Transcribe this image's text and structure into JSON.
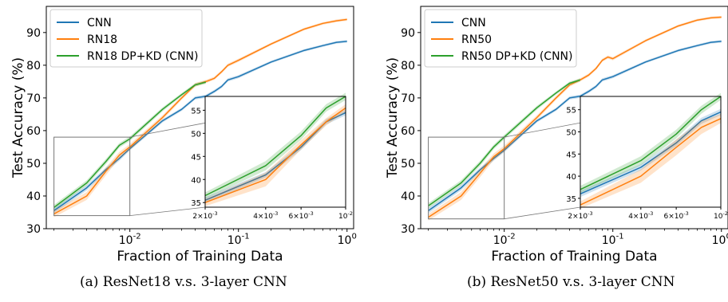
{
  "chart_data": [
    {
      "type": "line",
      "xscale": "log",
      "xlabel": "Fraction of Training Data",
      "ylabel": "Test Accuracy (%)",
      "xlim": [
        0.0017,
        1.15
      ],
      "ylim": [
        30,
        98
      ],
      "xticks": [
        "10^-2",
        "10^-1",
        "10^0"
      ],
      "yticks": [
        30,
        40,
        50,
        60,
        70,
        80,
        90
      ],
      "legend_position": "top-left",
      "grid": false,
      "series": [
        {
          "name": "CNN",
          "color": "#1f77b4",
          "x": [
            0.002,
            0.004,
            0.006,
            0.008,
            0.01,
            0.02,
            0.03,
            0.04,
            0.05,
            0.06,
            0.07,
            0.08,
            0.1,
            0.2,
            0.4,
            0.6,
            0.8,
            1.0
          ],
          "y": [
            35.5,
            42.5,
            48.0,
            51.5,
            54.5,
            63.0,
            66.5,
            70.0,
            70.5,
            72.0,
            73.5,
            75.5,
            76.5,
            81.0,
            84.5,
            86.0,
            87.0,
            87.3
          ],
          "band": [
            0.8,
            0.8,
            0.7,
            0.7,
            0.6,
            0.5,
            0.5,
            0.5,
            0.5,
            0.5,
            0.5,
            0.5,
            0.5,
            0.4,
            0.4,
            0.4,
            0.4,
            0.4
          ]
        },
        {
          "name": "RN18",
          "color": "#ff7f0e",
          "x": [
            0.002,
            0.004,
            0.006,
            0.008,
            0.01,
            0.02,
            0.03,
            0.04,
            0.05,
            0.06,
            0.07,
            0.08,
            0.1,
            0.2,
            0.4,
            0.6,
            0.8,
            1.0
          ],
          "y": [
            34.5,
            40.0,
            47.5,
            52.5,
            55.0,
            64.0,
            70.0,
            74.0,
            75.0,
            76.0,
            78.0,
            80.0,
            81.5,
            86.5,
            91.0,
            92.8,
            93.6,
            94.0
          ],
          "band": [
            1.0,
            1.2,
            1.2,
            1.0,
            0.9,
            0.7,
            0.6,
            0.6,
            0.5,
            0.5,
            0.5,
            0.5,
            0.5,
            0.4,
            0.4,
            0.4,
            0.4,
            0.4
          ]
        },
        {
          "name": "RN18 DP+KD (CNN)",
          "color": "#2ca02c",
          "x": [
            0.002,
            0.004,
            0.006,
            0.008,
            0.01,
            0.02,
            0.03,
            0.04,
            0.05
          ],
          "y": [
            36.5,
            44.0,
            50.5,
            55.5,
            57.5,
            66.5,
            71.0,
            74.0,
            74.8
          ],
          "band": [
            0.8,
            0.8,
            0.8,
            0.7,
            0.7,
            0.6,
            0.5,
            0.5,
            0.5
          ]
        }
      ],
      "inset": {
        "xlim": [
          0.002,
          0.01
        ],
        "ylim": [
          34,
          58
        ],
        "xticks": [
          "2×10^-3",
          "4×10^-3",
          "6×10^-3",
          "10^-2"
        ],
        "yticks": [
          35,
          40,
          45,
          50,
          55
        ],
        "series": [
          {
            "name": "CNN",
            "color": "#1f77b4",
            "x": [
              0.002,
              0.004,
              0.006,
              0.008,
              0.01
            ],
            "y": [
              35.5,
              41.0,
              47.0,
              52.5,
              54.5
            ],
            "band": [
              0.6,
              0.6,
              0.6,
              0.6,
              0.6
            ]
          },
          {
            "name": "RN18",
            "color": "#ff7f0e",
            "x": [
              0.002,
              0.004,
              0.006,
              0.008,
              0.01
            ],
            "y": [
              35.0,
              40.0,
              47.5,
              52.5,
              55.5
            ],
            "band": [
              0.8,
              1.5,
              1.0,
              0.8,
              0.8
            ]
          },
          {
            "name": "RN18 DP+KD (CNN)",
            "color": "#2ca02c",
            "x": [
              0.002,
              0.004,
              0.006,
              0.008,
              0.01
            ],
            "y": [
              36.5,
              43.0,
              49.5,
              55.5,
              58.0
            ],
            "band": [
              0.7,
              1.0,
              0.9,
              0.8,
              0.8
            ]
          }
        ]
      }
    },
    {
      "type": "line",
      "xscale": "log",
      "xlabel": "Fraction of Training Data",
      "ylabel": "Test Accuracy (%)",
      "xlim": [
        0.0017,
        1.15
      ],
      "ylim": [
        30,
        98
      ],
      "xticks": [
        "10^-2",
        "10^-1",
        "10^0"
      ],
      "yticks": [
        30,
        40,
        50,
        60,
        70,
        80,
        90
      ],
      "legend_position": "top-left",
      "grid": false,
      "series": [
        {
          "name": "CNN",
          "color": "#1f77b4",
          "x": [
            0.002,
            0.004,
            0.006,
            0.008,
            0.01,
            0.02,
            0.03,
            0.04,
            0.05,
            0.06,
            0.07,
            0.08,
            0.1,
            0.2,
            0.4,
            0.6,
            0.8,
            1.0
          ],
          "y": [
            35.5,
            42.5,
            48.0,
            51.5,
            54.0,
            63.0,
            66.5,
            70.0,
            70.5,
            72.0,
            73.5,
            75.5,
            76.5,
            81.0,
            84.5,
            86.0,
            87.0,
            87.3
          ],
          "band": [
            0.8,
            0.8,
            0.7,
            0.7,
            0.6,
            0.5,
            0.5,
            0.5,
            0.5,
            0.5,
            0.5,
            0.5,
            0.5,
            0.4,
            0.4,
            0.4,
            0.4,
            0.4
          ]
        },
        {
          "name": "RN50",
          "color": "#ff7f0e",
          "x": [
            0.002,
            0.004,
            0.006,
            0.008,
            0.01,
            0.02,
            0.03,
            0.04,
            0.05,
            0.06,
            0.07,
            0.08,
            0.09,
            0.1,
            0.2,
            0.4,
            0.6,
            0.8,
            1.0
          ],
          "y": [
            33.5,
            40.0,
            47.0,
            52.0,
            54.5,
            64.0,
            70.0,
            74.0,
            75.5,
            77.0,
            79.0,
            81.5,
            82.5,
            82.0,
            87.5,
            92.0,
            93.8,
            94.5,
            94.7
          ],
          "band": [
            1.0,
            1.2,
            1.2,
            1.0,
            0.9,
            0.7,
            0.6,
            0.6,
            0.5,
            0.5,
            0.5,
            0.5,
            0.5,
            0.5,
            0.4,
            0.4,
            0.4,
            0.4,
            0.4
          ]
        },
        {
          "name": "RN50 DP+KD (CNN)",
          "color": "#2ca02c",
          "x": [
            0.002,
            0.004,
            0.006,
            0.008,
            0.01,
            0.02,
            0.03,
            0.04,
            0.05
          ],
          "y": [
            37.0,
            44.0,
            50.0,
            55.0,
            58.0,
            67.0,
            71.5,
            74.5,
            75.5
          ],
          "band": [
            0.8,
            0.8,
            0.8,
            0.7,
            0.7,
            0.6,
            0.5,
            0.5,
            0.5
          ]
        }
      ],
      "inset": {
        "xlim": [
          0.002,
          0.01
        ],
        "ylim": [
          33,
          58
        ],
        "xticks": [
          "2×10^-3",
          "4×10^-3",
          "6×10^-3",
          "10^-2"
        ],
        "yticks": [
          35,
          40,
          45,
          50,
          55
        ],
        "series": [
          {
            "name": "CNN",
            "color": "#1f77b4",
            "x": [
              0.002,
              0.004,
              0.006,
              0.008,
              0.01
            ],
            "y": [
              36.0,
              42.0,
              47.5,
              52.5,
              54.5
            ],
            "band": [
              0.7,
              0.7,
              0.7,
              0.7,
              0.7
            ]
          },
          {
            "name": "RN50",
            "color": "#ff7f0e",
            "x": [
              0.002,
              0.004,
              0.006,
              0.008,
              0.01
            ],
            "y": [
              33.5,
              40.0,
              46.5,
              51.0,
              53.0
            ],
            "band": [
              0.8,
              1.5,
              1.8,
              1.5,
              1.0
            ]
          },
          {
            "name": "RN50 DP+KD (CNN)",
            "color": "#2ca02c",
            "x": [
              0.002,
              0.004,
              0.006,
              0.008,
              0.01
            ],
            "y": [
              37.0,
              43.5,
              49.5,
              55.0,
              58.0
            ],
            "band": [
              0.8,
              1.0,
              1.0,
              0.9,
              0.8
            ]
          }
        ]
      }
    }
  ],
  "captions": {
    "a": "(a) ResNet18 v.s. 3-layer CNN",
    "b": "(b) ResNet50 v.s. 3-layer CNN"
  }
}
